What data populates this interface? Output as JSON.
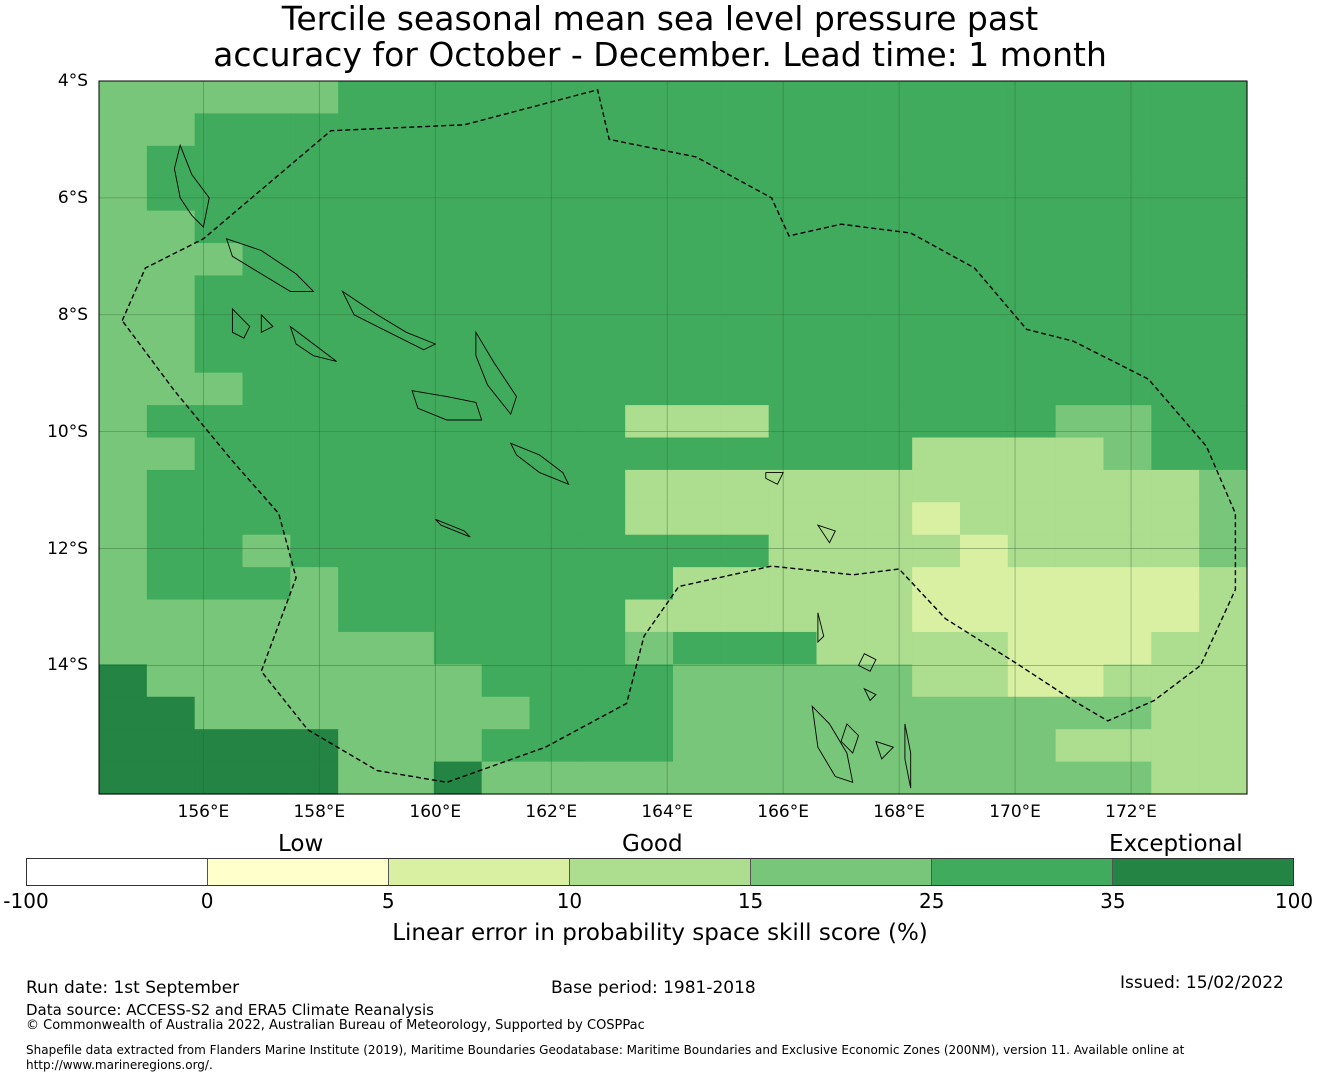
{
  "title": {
    "line1": "Tercile seasonal mean sea level pressure past",
    "line2": "accuracy for October - December. Lead time: 1 month"
  },
  "map": {
    "lon_range": [
      154.2,
      174.0
    ],
    "lat_range": [
      -16.2,
      -4.0
    ],
    "grid_step_deg": 0.833,
    "lat_labels": [
      "4°S",
      "6°S",
      "8°S",
      "10°S",
      "12°S",
      "14°S"
    ],
    "lat_values": [
      -4,
      -6,
      -8,
      -10,
      -12,
      -14
    ],
    "lon_labels": [
      "156°E",
      "158°E",
      "160°E",
      "162°E",
      "164°E",
      "166°E",
      "168°E",
      "170°E",
      "172°E"
    ],
    "lon_values": [
      156,
      158,
      160,
      162,
      164,
      166,
      168,
      170,
      172
    ],
    "eez_boundary": [
      [
        154.6,
        -8.1
      ],
      [
        155.0,
        -7.2
      ],
      [
        155.6,
        -6.9
      ],
      [
        156.0,
        -6.7
      ],
      [
        158.2,
        -4.85
      ],
      [
        160.5,
        -4.75
      ],
      [
        162.8,
        -4.15
      ],
      [
        163.0,
        -5.0
      ],
      [
        164.5,
        -5.3
      ],
      [
        165.8,
        -6.0
      ],
      [
        166.1,
        -6.65
      ],
      [
        167.0,
        -6.45
      ],
      [
        168.2,
        -6.6
      ],
      [
        169.3,
        -7.2
      ],
      [
        170.2,
        -8.25
      ],
      [
        171.0,
        -8.45
      ],
      [
        172.3,
        -9.1
      ],
      [
        173.3,
        -10.25
      ],
      [
        173.8,
        -11.4
      ],
      [
        173.8,
        -12.7
      ],
      [
        173.2,
        -14.0
      ],
      [
        172.4,
        -14.6
      ],
      [
        171.6,
        -14.95
      ],
      [
        171.0,
        -14.6
      ],
      [
        170.0,
        -13.95
      ],
      [
        168.8,
        -13.2
      ],
      [
        168.0,
        -12.35
      ],
      [
        167.2,
        -12.45
      ],
      [
        165.8,
        -12.3
      ],
      [
        164.2,
        -12.65
      ],
      [
        163.6,
        -13.5
      ],
      [
        163.3,
        -14.65
      ],
      [
        161.9,
        -15.4
      ],
      [
        160.2,
        -16.0
      ],
      [
        159.0,
        -15.8
      ],
      [
        157.8,
        -15.1
      ],
      [
        157.0,
        -14.1
      ],
      [
        157.6,
        -12.5
      ],
      [
        157.3,
        -11.4
      ],
      [
        156.5,
        -10.5
      ],
      [
        155.5,
        -9.3
      ],
      [
        154.6,
        -8.1
      ]
    ],
    "field_rows": [
      "44445555555555555555555555555555555555555555555555555555555",
      "44445555555555555555555555555555555555555555555555555555555",
      "44444444444444444444444444444444444444444444444444444444445",
      "44444444444444444444444444444444444444444444444444444444445",
      "44444444444444444444444444444444444444444444444444444444445",
      "44444444444444444444444444444444444444444444444444444444445",
      "44444444444444444444444444444444444444444444444444444444445",
      "45554444444444444444444444444444444444444444444444444444445",
      "44444444444444444444444444444444444444444444444444444444445",
      "54444444444444444444444444444444444444444444444444444444445",
      "54444444444444444444444444444444444444444444444444444444445",
      "54444444444444444444444444444444444444444444444444444444445",
      "54444444444444444444444444444444444444444444444444444444445",
      "54444444444444444444444444444444444444444444444444444444445",
      "44444444444444444444444444444444444444444444444444444444445"
    ],
    "field_cols": 24,
    "field_rowcount": 22,
    "field": [
      "444445555555555555555555",
      "445555555555555555555555",
      "455555555555555555555555",
      "455555555555555555555555",
      "445555555555555555555555",
      "444555555555555555555555",
      "445555555555555555555555",
      "445555555555555555555555",
      "445555555555555555555555",
      "444555555555555555555555",
      "455555555553335555554455",
      "445555555555555553333455",
      "455555555553333333333334",
      "455555555553333332333334",
      "455455555555553333233334",
      "455545555555333332222223",
      "444445555553333332222223",
      "444444455554555333322233",
      "644444445555444443322333",
      "664444444555444444444433",
      "666664445555444444443333",
      "666664464444444444444433"
    ],
    "islands": [
      [
        [
          155.6,
          -5.1
        ],
        [
          155.8,
          -5.6
        ],
        [
          156.1,
          -6.0
        ],
        [
          156.0,
          -6.5
        ],
        [
          155.8,
          -6.3
        ],
        [
          155.6,
          -6.0
        ],
        [
          155.5,
          -5.5
        ]
      ],
      [
        [
          156.4,
          -6.7
        ],
        [
          157.0,
          -6.9
        ],
        [
          157.6,
          -7.3
        ],
        [
          157.9,
          -7.6
        ],
        [
          157.5,
          -7.6
        ],
        [
          157.0,
          -7.3
        ],
        [
          156.5,
          -7.0
        ]
      ],
      [
        [
          156.5,
          -7.9
        ],
        [
          156.8,
          -8.2
        ],
        [
          156.7,
          -8.4
        ],
        [
          156.5,
          -8.3
        ]
      ],
      [
        [
          157.0,
          -8.0
        ],
        [
          157.2,
          -8.2
        ],
        [
          157.0,
          -8.3
        ]
      ],
      [
        [
          157.5,
          -8.2
        ],
        [
          157.9,
          -8.5
        ],
        [
          158.3,
          -8.8
        ],
        [
          157.9,
          -8.7
        ],
        [
          157.6,
          -8.5
        ]
      ],
      [
        [
          158.4,
          -7.6
        ],
        [
          159.0,
          -8.0
        ],
        [
          159.5,
          -8.3
        ],
        [
          160.0,
          -8.5
        ],
        [
          159.8,
          -8.6
        ],
        [
          159.2,
          -8.3
        ],
        [
          158.6,
          -8.0
        ]
      ],
      [
        [
          159.6,
          -9.3
        ],
        [
          160.2,
          -9.4
        ],
        [
          160.7,
          -9.5
        ],
        [
          160.8,
          -9.8
        ],
        [
          160.2,
          -9.8
        ],
        [
          159.7,
          -9.6
        ]
      ],
      [
        [
          160.7,
          -8.3
        ],
        [
          161.0,
          -8.8
        ],
        [
          161.4,
          -9.4
        ],
        [
          161.3,
          -9.7
        ],
        [
          160.9,
          -9.2
        ],
        [
          160.7,
          -8.7
        ]
      ],
      [
        [
          161.3,
          -10.2
        ],
        [
          161.8,
          -10.4
        ],
        [
          162.2,
          -10.7
        ],
        [
          162.3,
          -10.9
        ],
        [
          161.8,
          -10.7
        ],
        [
          161.4,
          -10.4
        ]
      ],
      [
        [
          160.0,
          -11.5
        ],
        [
          160.5,
          -11.7
        ],
        [
          160.6,
          -11.8
        ],
        [
          160.1,
          -11.6
        ]
      ],
      [
        [
          165.7,
          -10.7
        ],
        [
          166.0,
          -10.7
        ],
        [
          165.9,
          -10.9
        ],
        [
          165.7,
          -10.8
        ]
      ],
      [
        [
          166.6,
          -11.6
        ],
        [
          166.9,
          -11.7
        ],
        [
          166.8,
          -11.9
        ]
      ],
      [
        [
          166.6,
          -13.1
        ],
        [
          166.7,
          -13.5
        ],
        [
          166.6,
          -13.6
        ]
      ],
      [
        [
          167.4,
          -13.8
        ],
        [
          167.6,
          -13.9
        ],
        [
          167.5,
          -14.1
        ],
        [
          167.3,
          -14.0
        ]
      ],
      [
        [
          167.4,
          -14.4
        ],
        [
          167.6,
          -14.5
        ],
        [
          167.5,
          -14.6
        ]
      ],
      [
        [
          166.5,
          -14.7
        ],
        [
          166.8,
          -15.0
        ],
        [
          167.1,
          -15.5
        ],
        [
          167.2,
          -16.0
        ],
        [
          166.9,
          -15.9
        ],
        [
          166.6,
          -15.4
        ]
      ],
      [
        [
          167.1,
          -15.0
        ],
        [
          167.3,
          -15.2
        ],
        [
          167.2,
          -15.5
        ],
        [
          167.0,
          -15.3
        ]
      ],
      [
        [
          167.6,
          -15.3
        ],
        [
          167.9,
          -15.4
        ],
        [
          167.7,
          -15.6
        ]
      ],
      [
        [
          168.1,
          -15.0
        ],
        [
          168.2,
          -15.5
        ],
        [
          168.2,
          -16.1
        ],
        [
          168.1,
          -15.6
        ]
      ]
    ]
  },
  "categories": [
    "Low",
    "Good",
    "Exceptional"
  ],
  "colorbar": {
    "colors": [
      "#ffffff",
      "#ffffcc",
      "#d9f0a3",
      "#addd8e",
      "#78c679",
      "#41ab5d",
      "#238443"
    ],
    "ticks": [
      "-100",
      "0",
      "5",
      "10",
      "15",
      "25",
      "35",
      "100"
    ],
    "title": "Linear error in probability space skill score (%)"
  },
  "footer": {
    "run_date": "Run date: 1st September",
    "base_period": "Base period: 1981-2018",
    "issued": "Issued: 15/02/2022",
    "data_source": "Data source: ACCESS-S2 and ERA5 Climate Reanalysis",
    "copyright": "© Commonwealth of Australia 2022, Australian Bureau of Meteorology, Supported by COSPPac",
    "shapefile_line1": "Shapefile data extracted from Flanders Marine Institute (2019), Maritime Boundaries Geodatabase: Maritime Boundaries and Exclusive Economic Zones (200NM), version 11. Available online at",
    "shapefile_line2": "http://www.marineregions.org/."
  }
}
